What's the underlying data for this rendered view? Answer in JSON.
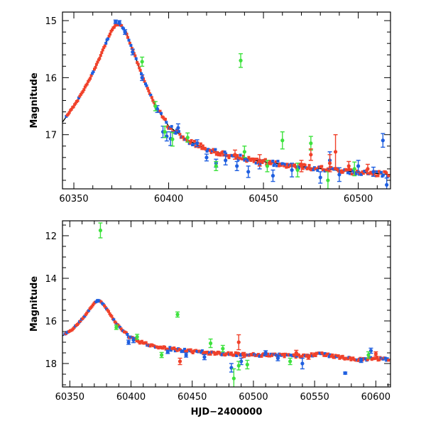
{
  "colors": {
    "blue": "#1f5fe0",
    "green": "#3ee23e",
    "red": "#f0412a",
    "model": "#000000"
  },
  "chart_data": [
    {
      "type": "scatter",
      "title": "",
      "xlabel": "",
      "ylabel": "Magnitude",
      "xlim": [
        60344,
        60517
      ],
      "ylim": [
        17.95,
        14.85
      ],
      "y_inverted": true,
      "xticks": [
        60350,
        60400,
        60450,
        60500
      ],
      "yticks": [
        15,
        16,
        17
      ],
      "model_curve": {
        "x": [
          60344,
          60352,
          60358,
          60363,
          60367,
          60370,
          60372.5,
          60375,
          60378,
          60382,
          60387,
          60393,
          60400,
          60410,
          60420,
          60430,
          60445,
          60460,
          60475,
          60490,
          60505,
          60517
        ],
        "y": [
          16.78,
          16.4,
          16.05,
          15.7,
          15.38,
          15.17,
          15.06,
          15.08,
          15.25,
          15.6,
          16.05,
          16.5,
          16.85,
          17.1,
          17.25,
          17.35,
          17.45,
          17.52,
          17.58,
          17.63,
          17.67,
          17.7
        ]
      },
      "series": [
        {
          "color": "blue",
          "points": [
            {
              "x": 60372,
              "y": 15.02,
              "err": 0.03
            },
            {
              "x": 60374,
              "y": 15.03,
              "err": 0.03
            },
            {
              "x": 60377,
              "y": 15.2,
              "err": 0.04
            },
            {
              "x": 60381,
              "y": 15.55,
              "err": 0.05
            },
            {
              "x": 60386,
              "y": 16.0,
              "err": 0.05
            },
            {
              "x": 60394,
              "y": 16.55,
              "err": 0.06
            },
            {
              "x": 60397,
              "y": 16.95,
              "err": 0.1
            },
            {
              "x": 60399,
              "y": 17.03,
              "err": 0.08
            },
            {
              "x": 60401,
              "y": 17.07,
              "err": 0.12
            },
            {
              "x": 60405,
              "y": 16.88,
              "err": 0.07
            },
            {
              "x": 60415,
              "y": 17.15,
              "err": 0.06
            },
            {
              "x": 60420,
              "y": 17.4,
              "err": 0.06
            },
            {
              "x": 60425,
              "y": 17.5,
              "err": 0.07
            },
            {
              "x": 60430,
              "y": 17.45,
              "err": 0.08
            },
            {
              "x": 60436,
              "y": 17.55,
              "err": 0.08
            },
            {
              "x": 60442,
              "y": 17.65,
              "err": 0.1
            },
            {
              "x": 60448,
              "y": 17.52,
              "err": 0.08
            },
            {
              "x": 60455,
              "y": 17.72,
              "err": 0.1
            },
            {
              "x": 60465,
              "y": 17.62,
              "err": 0.12
            },
            {
              "x": 60480,
              "y": 17.75,
              "err": 0.1
            },
            {
              "x": 60485,
              "y": 17.45,
              "err": 0.15
            },
            {
              "x": 60490,
              "y": 17.7,
              "err": 0.12
            },
            {
              "x": 60500,
              "y": 17.55,
              "err": 0.1
            },
            {
              "x": 60508,
              "y": 17.65,
              "err": 0.08
            },
            {
              "x": 60513,
              "y": 17.1,
              "err": 0.12
            },
            {
              "x": 60515,
              "y": 17.88,
              "err": 0.12
            }
          ]
        },
        {
          "color": "green",
          "points": [
            {
              "x": 60386,
              "y": 15.72,
              "err": 0.08
            },
            {
              "x": 60393,
              "y": 16.5,
              "err": 0.08
            },
            {
              "x": 60398,
              "y": 16.95,
              "err": 0.1
            },
            {
              "x": 60402,
              "y": 17.08,
              "err": 0.12
            },
            {
              "x": 60410,
              "y": 17.05,
              "err": 0.08
            },
            {
              "x": 60425,
              "y": 17.55,
              "err": 0.08
            },
            {
              "x": 60438,
              "y": 15.7,
              "err": 0.12
            },
            {
              "x": 60440,
              "y": 17.3,
              "err": 0.1
            },
            {
              "x": 60452,
              "y": 17.55,
              "err": 0.1
            },
            {
              "x": 60460,
              "y": 17.1,
              "err": 0.15
            },
            {
              "x": 60468,
              "y": 17.62,
              "err": 0.12
            },
            {
              "x": 60475,
              "y": 17.15,
              "err": 0.12
            },
            {
              "x": 60484,
              "y": 17.8,
              "err": 0.15
            },
            {
              "x": 60498,
              "y": 17.6,
              "err": 0.12
            }
          ]
        },
        {
          "color": "red",
          "points": [
            {
              "x": 60435,
              "y": 17.35,
              "err": 0.08
            },
            {
              "x": 60448,
              "y": 17.45,
              "err": 0.1
            },
            {
              "x": 60470,
              "y": 17.55,
              "err": 0.1
            },
            {
              "x": 60475,
              "y": 17.35,
              "err": 0.1
            },
            {
              "x": 60485,
              "y": 17.5,
              "err": 0.15
            },
            {
              "x": 60488,
              "y": 17.3,
              "err": 0.3
            },
            {
              "x": 60495,
              "y": 17.55,
              "err": 0.08
            },
            {
              "x": 60505,
              "y": 17.6,
              "err": 0.08
            }
          ]
        }
      ]
    },
    {
      "type": "scatter",
      "title": "",
      "xlabel": "HJD−2400000",
      "ylabel": "Magnitude",
      "xlim": [
        60344,
        60612
      ],
      "ylim": [
        19.1,
        11.3
      ],
      "y_inverted": true,
      "xticks": [
        60350,
        60400,
        60450,
        60500,
        60550,
        60600
      ],
      "yticks": [
        12,
        14,
        16,
        18
      ],
      "model_curve": {
        "x": [
          60344,
          60352,
          60358,
          60363,
          60367,
          60370,
          60372.5,
          60375,
          60378,
          60382,
          60387,
          60393,
          60400,
          60410,
          60420,
          60430,
          60445,
          60460,
          60480,
          60500,
          60520,
          60540,
          60555,
          60570,
          60585,
          60600,
          60612
        ],
        "y": [
          16.7,
          16.4,
          16.05,
          15.7,
          15.38,
          15.17,
          15.06,
          15.08,
          15.25,
          15.6,
          16.05,
          16.45,
          16.8,
          17.05,
          17.2,
          17.3,
          17.4,
          17.48,
          17.55,
          17.6,
          17.62,
          17.65,
          17.55,
          17.7,
          17.8,
          17.78,
          17.8
        ]
      },
      "series": [
        {
          "color": "blue",
          "points": [
            {
              "x": 60373,
              "y": 15.05,
              "err": 0.05
            },
            {
              "x": 60398,
              "y": 17.0,
              "err": 0.1
            },
            {
              "x": 60402,
              "y": 16.9,
              "err": 0.12
            },
            {
              "x": 60430,
              "y": 17.45,
              "err": 0.08
            },
            {
              "x": 60445,
              "y": 17.6,
              "err": 0.1
            },
            {
              "x": 60460,
              "y": 17.7,
              "err": 0.12
            },
            {
              "x": 60482,
              "y": 18.2,
              "err": 0.2
            },
            {
              "x": 60490,
              "y": 17.9,
              "err": 0.15
            },
            {
              "x": 60510,
              "y": 17.5,
              "err": 0.1
            },
            {
              "x": 60520,
              "y": 17.75,
              "err": 0.12
            },
            {
              "x": 60540,
              "y": 18.0,
              "err": 0.25
            },
            {
              "x": 60575,
              "y": 18.45,
              "err": 0.05
            },
            {
              "x": 60588,
              "y": 17.85,
              "err": 0.1
            },
            {
              "x": 60596,
              "y": 17.4,
              "err": 0.12
            }
          ]
        },
        {
          "color": "green",
          "points": [
            {
              "x": 60375,
              "y": 11.75,
              "err": 0.35
            },
            {
              "x": 60388,
              "y": 16.3,
              "err": 0.1
            },
            {
              "x": 60405,
              "y": 16.75,
              "err": 0.12
            },
            {
              "x": 60425,
              "y": 17.6,
              "err": 0.12
            },
            {
              "x": 60438,
              "y": 15.7,
              "err": 0.12
            },
            {
              "x": 60465,
              "y": 17.05,
              "err": 0.2
            },
            {
              "x": 60475,
              "y": 17.3,
              "err": 0.15
            },
            {
              "x": 60484,
              "y": 18.7,
              "err": 0.45
            },
            {
              "x": 60488,
              "y": 18.1,
              "err": 0.2
            },
            {
              "x": 60495,
              "y": 18.05,
              "err": 0.2
            },
            {
              "x": 60530,
              "y": 17.9,
              "err": 0.15
            },
            {
              "x": 60594,
              "y": 17.6,
              "err": 0.15
            }
          ]
        },
        {
          "color": "red",
          "points": [
            {
              "x": 60440,
              "y": 17.9,
              "err": 0.15
            },
            {
              "x": 60488,
              "y": 17.0,
              "err": 0.35
            },
            {
              "x": 60492,
              "y": 17.6,
              "err": 0.12
            },
            {
              "x": 60535,
              "y": 17.5,
              "err": 0.12
            },
            {
              "x": 60545,
              "y": 17.7,
              "err": 0.1
            },
            {
              "x": 60600,
              "y": 17.55,
              "err": 0.1
            }
          ]
        }
      ]
    }
  ]
}
